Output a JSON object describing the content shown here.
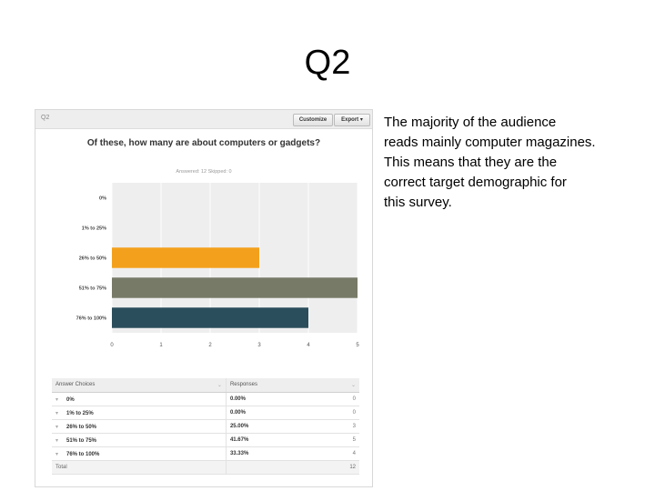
{
  "slide": {
    "title": "Q2",
    "commentary": [
      "The majority of the audience",
      "reads mainly computer magazines.",
      "This means that they are the",
      "correct target demographic for",
      "this survey."
    ]
  },
  "panel": {
    "label": "Q2",
    "customize_label": "Customize",
    "export_label": "Export ▾",
    "question": "Of these, how many are about computers or gadgets?",
    "stats": "Answered: 12    Skipped: 0"
  },
  "chart_data": {
    "type": "bar",
    "orientation": "horizontal",
    "title": "Of these, how many are about computers or gadgets?",
    "categories": [
      "0%",
      "1% to 25%",
      "26% to 50%",
      "51% to 75%",
      "76% to 100%"
    ],
    "values": [
      0,
      0,
      3,
      5,
      4
    ],
    "colors": [
      "#f3a11c",
      "#f3a11c",
      "#f3a11c",
      "#787a68",
      "#2b4e5c"
    ],
    "xlim": [
      0,
      5
    ],
    "xticks": [
      "0",
      "1",
      "2",
      "3",
      "4",
      "5"
    ],
    "grid": true,
    "legend": "none"
  },
  "table": {
    "headers": [
      "Answer Choices",
      "Responses"
    ],
    "rows": [
      {
        "choice": "0%",
        "pct": "0.00%",
        "count": "0"
      },
      {
        "choice": "1% to 25%",
        "pct": "0.00%",
        "count": "0"
      },
      {
        "choice": "26% to 50%",
        "pct": "25.00%",
        "count": "3"
      },
      {
        "choice": "51% to 75%",
        "pct": "41.67%",
        "count": "5"
      },
      {
        "choice": "76% to 100%",
        "pct": "33.33%",
        "count": "4"
      }
    ],
    "total_label": "Total",
    "total_count": "12"
  }
}
